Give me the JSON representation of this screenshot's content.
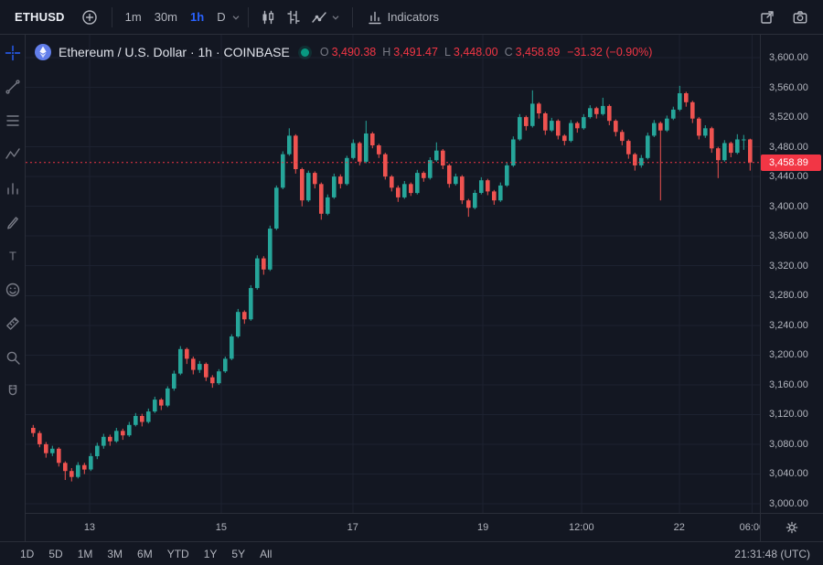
{
  "colors": {
    "bg": "#131722",
    "border": "#2a2e39",
    "text": "#d1d4dc",
    "muted": "#787b86",
    "axis_text": "#b2b5be",
    "accent_blue": "#2962ff",
    "up": "#26a69a",
    "down": "#ef5350",
    "price_line": "#f23645",
    "tag_bg": "#f23645",
    "green_dot": "#089981",
    "eth_logo": "#627eea",
    "grid": "#1d2230"
  },
  "top_toolbar": {
    "symbol": "ETHUSD",
    "intervals": [
      {
        "label": "1m",
        "active": false
      },
      {
        "label": "30m",
        "active": false
      },
      {
        "label": "1h",
        "active": true
      },
      {
        "label": "D",
        "active": false,
        "chevron": true
      }
    ],
    "style_buttons": [
      {
        "name": "candlestick-style",
        "icon": "candles"
      },
      {
        "name": "bar-style",
        "icon": "bars"
      },
      {
        "name": "area-style",
        "icon": "area",
        "chevron": true
      }
    ],
    "indicators_label": "Indicators"
  },
  "left_toolbar": {
    "tools": [
      {
        "name": "crosshair",
        "icon": "crosshair",
        "active": true
      },
      {
        "name": "trend-line",
        "icon": "trendline",
        "active": false
      },
      {
        "name": "fib-retracement",
        "icon": "fib",
        "active": false
      },
      {
        "name": "pattern",
        "icon": "pattern",
        "active": false
      },
      {
        "name": "forecast",
        "icon": "forecast",
        "active": false
      },
      {
        "name": "brush",
        "icon": "brush",
        "active": false
      },
      {
        "name": "text-tool",
        "icon": "text",
        "active": false
      },
      {
        "name": "emoji",
        "icon": "emoji",
        "active": false
      },
      {
        "name": "measure",
        "icon": "measure",
        "active": false
      },
      {
        "name": "zoom",
        "icon": "zoom",
        "active": false
      },
      {
        "name": "magnet",
        "icon": "magnet",
        "active": false
      }
    ]
  },
  "legend": {
    "title": "Ethereum / U.S. Dollar · 1h · COINBASE",
    "ohlc": [
      {
        "label": "O",
        "value": "3,490.38"
      },
      {
        "label": "H",
        "value": "3,491.47"
      },
      {
        "label": "L",
        "value": "3,448.00"
      },
      {
        "label": "C",
        "value": "3,458.89"
      }
    ],
    "change": "−31.32 (−0.90%)"
  },
  "price_axis": {
    "labels": [
      "3,600.00",
      "3,560.00",
      "3,520.00",
      "3,480.00",
      "3,440.00",
      "3,400.00",
      "3,360.00",
      "3,320.00",
      "3,280.00",
      "3,240.00",
      "3,200.00",
      "3,160.00",
      "3,120.00",
      "3,080.00",
      "3,040.00",
      "3,000.00"
    ],
    "current": "3,458.89"
  },
  "time_axis": {
    "labels": [
      {
        "text": "13",
        "pos": 0.087
      },
      {
        "text": "15",
        "pos": 0.266
      },
      {
        "text": "17",
        "pos": 0.445
      },
      {
        "text": "19",
        "pos": 0.622
      },
      {
        "text": "12:00",
        "pos": 0.756
      },
      {
        "text": "22",
        "pos": 0.889
      },
      {
        "text": "06:00",
        "pos": 0.988
      }
    ]
  },
  "bottom_toolbar": {
    "ranges": [
      "1D",
      "5D",
      "1M",
      "3M",
      "6M",
      "YTD",
      "1Y",
      "5Y",
      "All"
    ],
    "clock": "21:31:48 (UTC)"
  },
  "chart_data": {
    "type": "candlestick",
    "symbol": "ETHUSD",
    "title": "Ethereum / U.S. Dollar",
    "interval": "1h",
    "exchange": "COINBASE",
    "ylim": [
      3000,
      3600
    ],
    "price_step": 40,
    "grid": true,
    "current_price": 3458.89,
    "open": 3490.38,
    "high": 3491.47,
    "low": 3448.0,
    "close": 3458.89,
    "change": -31.32,
    "change_pct": -0.9,
    "candles": [
      [
        3102,
        3106,
        3090,
        3095
      ],
      [
        3095,
        3098,
        3076,
        3080
      ],
      [
        3080,
        3083,
        3062,
        3068
      ],
      [
        3068,
        3078,
        3064,
        3074
      ],
      [
        3074,
        3076,
        3050,
        3055
      ],
      [
        3055,
        3057,
        3032,
        3044
      ],
      [
        3044,
        3048,
        3030,
        3036
      ],
      [
        3036,
        3056,
        3034,
        3052
      ],
      [
        3052,
        3055,
        3040,
        3046
      ],
      [
        3046,
        3068,
        3044,
        3064
      ],
      [
        3064,
        3082,
        3060,
        3078
      ],
      [
        3078,
        3094,
        3074,
        3090
      ],
      [
        3090,
        3093,
        3078,
        3084
      ],
      [
        3084,
        3102,
        3082,
        3098
      ],
      [
        3098,
        3101,
        3086,
        3092
      ],
      [
        3092,
        3110,
        3090,
        3106
      ],
      [
        3106,
        3122,
        3104,
        3118
      ],
      [
        3118,
        3121,
        3104,
        3110
      ],
      [
        3110,
        3128,
        3108,
        3124
      ],
      [
        3124,
        3144,
        3122,
        3140
      ],
      [
        3140,
        3142,
        3126,
        3132
      ],
      [
        3132,
        3158,
        3130,
        3155
      ],
      [
        3155,
        3179,
        3152,
        3175
      ],
      [
        3175,
        3212,
        3173,
        3208
      ],
      [
        3208,
        3210,
        3188,
        3195
      ],
      [
        3195,
        3198,
        3174,
        3180
      ],
      [
        3180,
        3192,
        3176,
        3188
      ],
      [
        3188,
        3190,
        3165,
        3170
      ],
      [
        3170,
        3173,
        3156,
        3162
      ],
      [
        3162,
        3181,
        3160,
        3178
      ],
      [
        3178,
        3198,
        3176,
        3195
      ],
      [
        3195,
        3228,
        3193,
        3225
      ],
      [
        3225,
        3262,
        3223,
        3258
      ],
      [
        3258,
        3260,
        3242,
        3248
      ],
      [
        3248,
        3294,
        3246,
        3290
      ],
      [
        3290,
        3334,
        3288,
        3330
      ],
      [
        3330,
        3333,
        3308,
        3315
      ],
      [
        3315,
        3374,
        3313,
        3370
      ],
      [
        3370,
        3428,
        3368,
        3425
      ],
      [
        3425,
        3474,
        3423,
        3470
      ],
      [
        3470,
        3505,
        3468,
        3495
      ],
      [
        3495,
        3497,
        3444,
        3450
      ],
      [
        3450,
        3452,
        3400,
        3408
      ],
      [
        3408,
        3448,
        3406,
        3445
      ],
      [
        3445,
        3447,
        3424,
        3430
      ],
      [
        3430,
        3432,
        3382,
        3390
      ],
      [
        3390,
        3416,
        3388,
        3412
      ],
      [
        3412,
        3444,
        3410,
        3440
      ],
      [
        3440,
        3443,
        3424,
        3430
      ],
      [
        3430,
        3468,
        3428,
        3465
      ],
      [
        3465,
        3490,
        3463,
        3485
      ],
      [
        3485,
        3487,
        3455,
        3460
      ],
      [
        3460,
        3515,
        3458,
        3498
      ],
      [
        3498,
        3500,
        3478,
        3482
      ],
      [
        3482,
        3484,
        3465,
        3470
      ],
      [
        3470,
        3472,
        3436,
        3440
      ],
      [
        3440,
        3442,
        3420,
        3425
      ],
      [
        3425,
        3428,
        3406,
        3412
      ],
      [
        3412,
        3434,
        3410,
        3430
      ],
      [
        3430,
        3432,
        3414,
        3418
      ],
      [
        3418,
        3449,
        3416,
        3445
      ],
      [
        3445,
        3447,
        3433,
        3438
      ],
      [
        3438,
        3466,
        3436,
        3462
      ],
      [
        3462,
        3486,
        3460,
        3475
      ],
      [
        3475,
        3477,
        3450,
        3455
      ],
      [
        3455,
        3457,
        3425,
        3430
      ],
      [
        3430,
        3444,
        3428,
        3440
      ],
      [
        3440,
        3442,
        3403,
        3408
      ],
      [
        3408,
        3410,
        3386,
        3398
      ],
      [
        3398,
        3422,
        3396,
        3418
      ],
      [
        3418,
        3439,
        3416,
        3435
      ],
      [
        3435,
        3437,
        3415,
        3420
      ],
      [
        3420,
        3422,
        3402,
        3408
      ],
      [
        3408,
        3432,
        3406,
        3428
      ],
      [
        3428,
        3459,
        3426,
        3455
      ],
      [
        3455,
        3494,
        3453,
        3490
      ],
      [
        3490,
        3524,
        3488,
        3520
      ],
      [
        3520,
        3522,
        3502,
        3508
      ],
      [
        3508,
        3556,
        3506,
        3538
      ],
      [
        3538,
        3540,
        3518,
        3525
      ],
      [
        3525,
        3527,
        3496,
        3502
      ],
      [
        3502,
        3519,
        3500,
        3515
      ],
      [
        3515,
        3517,
        3490,
        3495
      ],
      [
        3495,
        3497,
        3482,
        3488
      ],
      [
        3488,
        3516,
        3486,
        3512
      ],
      [
        3512,
        3514,
        3499,
        3505
      ],
      [
        3505,
        3524,
        3503,
        3520
      ],
      [
        3520,
        3536,
        3518,
        3532
      ],
      [
        3532,
        3534,
        3518,
        3524
      ],
      [
        3524,
        3546,
        3522,
        3535
      ],
      [
        3535,
        3537,
        3509,
        3515
      ],
      [
        3515,
        3517,
        3494,
        3500
      ],
      [
        3500,
        3503,
        3482,
        3488
      ],
      [
        3488,
        3490,
        3464,
        3470
      ],
      [
        3470,
        3472,
        3448,
        3455
      ],
      [
        3455,
        3469,
        3452,
        3465
      ],
      [
        3465,
        3499,
        3463,
        3495
      ],
      [
        3495,
        3516,
        3493,
        3512
      ],
      [
        3512,
        3514,
        3408,
        3502
      ],
      [
        3502,
        3522,
        3500,
        3518
      ],
      [
        3518,
        3534,
        3516,
        3530
      ],
      [
        3530,
        3562,
        3528,
        3552
      ],
      [
        3552,
        3554,
        3534,
        3540
      ],
      [
        3540,
        3542,
        3512,
        3518
      ],
      [
        3518,
        3520,
        3490,
        3495
      ],
      [
        3495,
        3509,
        3492,
        3505
      ],
      [
        3505,
        3507,
        3472,
        3478
      ],
      [
        3478,
        3480,
        3438,
        3462
      ],
      [
        3462,
        3489,
        3460,
        3485
      ],
      [
        3485,
        3487,
        3466,
        3472
      ],
      [
        3472,
        3497,
        3470,
        3490
      ],
      [
        3490,
        3496,
        3476,
        3490
      ],
      [
        3490,
        3491,
        3448,
        3459
      ]
    ]
  }
}
